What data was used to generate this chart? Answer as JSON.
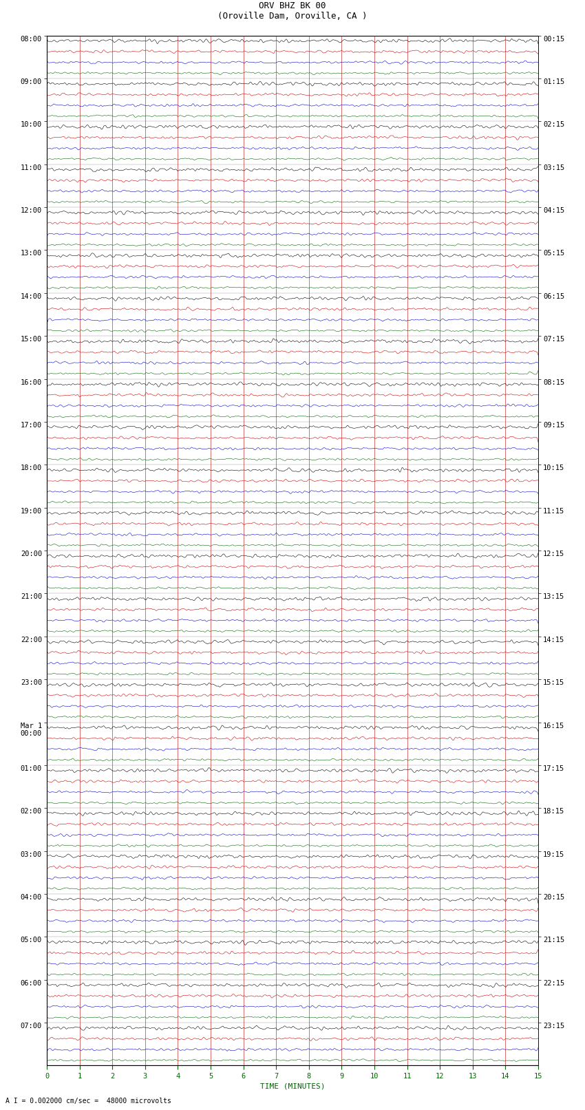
{
  "title_line1": "ORV BHZ BK 00",
  "title_line2": "(Oroville Dam, Oroville, CA )",
  "scale_label": "I  = 0.002000 cm/sec",
  "bottom_label": "A I = 0.002000 cm/sec =  48000 microvolts",
  "xlabel": "TIME (MINUTES)",
  "left_times": [
    "08:00",
    "09:00",
    "10:00",
    "11:00",
    "12:00",
    "13:00",
    "14:00",
    "15:00",
    "16:00",
    "17:00",
    "18:00",
    "19:00",
    "20:00",
    "21:00",
    "22:00",
    "23:00",
    "Mar 1\n00:00",
    "01:00",
    "02:00",
    "03:00",
    "04:00",
    "05:00",
    "06:00",
    "07:00"
  ],
  "right_times": [
    "00:15",
    "01:15",
    "02:15",
    "03:15",
    "04:15",
    "05:15",
    "06:15",
    "07:15",
    "08:15",
    "09:15",
    "10:15",
    "11:15",
    "12:15",
    "13:15",
    "14:15",
    "15:15",
    "16:15",
    "17:15",
    "18:15",
    "19:15",
    "20:15",
    "21:15",
    "22:15",
    "23:15"
  ],
  "n_rows": 24,
  "traces_per_row": 4,
  "x_ticks": [
    0,
    1,
    2,
    3,
    4,
    5,
    6,
    7,
    8,
    9,
    10,
    11,
    12,
    13,
    14,
    15
  ],
  "trace_colors": [
    "#000000",
    "#cc0000",
    "#0000cc",
    "#006600"
  ],
  "bg_color": "#ffffff",
  "grid_color": "#bb0000",
  "noise_amplitude": 0.018,
  "noise_seed": 42,
  "fig_width": 8.5,
  "fig_height": 16.13,
  "dpi": 100
}
